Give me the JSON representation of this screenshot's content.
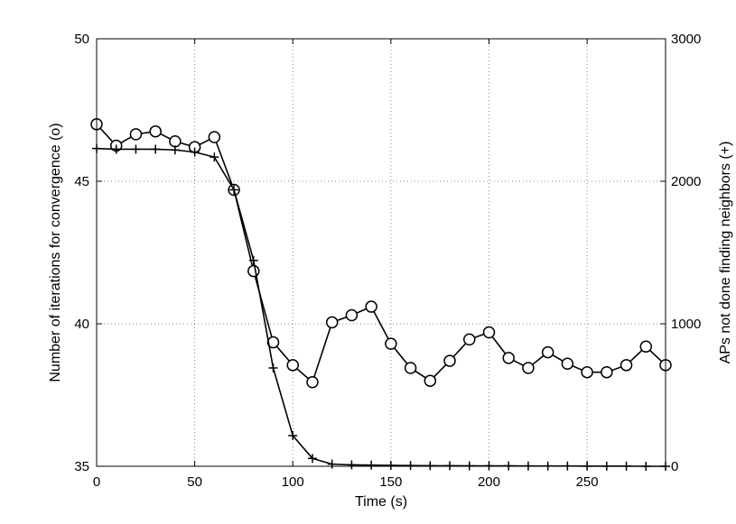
{
  "chart_data": {
    "type": "line",
    "title": "",
    "xlabel": "Time (s)",
    "ylabel_left": "Number of iterations for convergence (o)",
    "ylabel_right": "APs not done finding neighbors (+)",
    "xlim": [
      0,
      290
    ],
    "ylim_left": [
      35,
      50
    ],
    "ylim_right": [
      0,
      3000
    ],
    "x_ticks": [
      "0",
      "50",
      "100",
      "150",
      "200",
      "250"
    ],
    "y_ticks_left": [
      "35",
      "40",
      "45",
      "50"
    ],
    "y_ticks_right": [
      "0",
      "1000",
      "2000",
      "3000"
    ],
    "grid": true,
    "series": [
      {
        "axis": "left",
        "marker": "circle",
        "x": [
          0,
          10,
          20,
          30,
          40,
          50,
          60,
          70,
          80,
          90,
          100,
          110,
          120,
          130,
          140,
          150,
          160,
          170,
          180,
          190,
          200,
          210,
          220,
          230,
          240,
          250,
          260,
          270,
          280,
          290
        ],
        "values": [
          47.0,
          46.25,
          46.65,
          46.75,
          46.4,
          46.2,
          46.55,
          44.7,
          41.85,
          39.35,
          38.55,
          37.95,
          40.05,
          40.3,
          40.6,
          39.3,
          38.45,
          38.0,
          38.7,
          39.45,
          39.7,
          38.8,
          38.45,
          39.0,
          38.6,
          38.3,
          38.3,
          38.55,
          39.2,
          38.55
        ]
      },
      {
        "axis": "right",
        "marker": "plus",
        "x": [
          0,
          10,
          20,
          30,
          40,
          50,
          60,
          70,
          80,
          90,
          100,
          110,
          120,
          130,
          140,
          150,
          160,
          170,
          180,
          190,
          200,
          210,
          220,
          230,
          240,
          250,
          260,
          270,
          280,
          290
        ],
        "values": [
          2230,
          2225,
          2225,
          2225,
          2220,
          2205,
          2170,
          1940,
          1445,
          690,
          215,
          55,
          15,
          10,
          8,
          6,
          5,
          4,
          4,
          3,
          3,
          3,
          2,
          2,
          2,
          1,
          1,
          1,
          0,
          0
        ]
      }
    ]
  }
}
